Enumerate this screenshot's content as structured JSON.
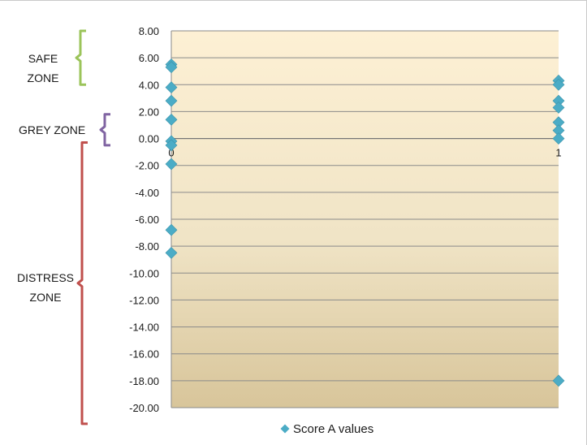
{
  "zones": [
    {
      "id": "safe",
      "lines": [
        "SAFE",
        "ZONE"
      ],
      "color": "#9bc45a",
      "range": [
        4.0,
        8.0
      ]
    },
    {
      "id": "grey",
      "lines": [
        "GREY ZONE"
      ],
      "color": "#8064a2",
      "range": [
        -0.5,
        1.8
      ]
    },
    {
      "id": "distress",
      "lines": [
        "DISTRESS",
        "ZONE"
      ],
      "color": "#c0504d",
      "range": [
        -21.2,
        -0.3
      ]
    }
  ],
  "chart_data": {
    "type": "scatter",
    "title": "",
    "xlabel": "",
    "ylabel": "",
    "xlim": [
      0,
      1
    ],
    "ylim": [
      -20,
      8
    ],
    "x_ticks": [
      0,
      1
    ],
    "y_ticks": [
      "8.00",
      "6.00",
      "4.00",
      "2.00",
      "0.00",
      "-2.00",
      "-4.00",
      "-6.00",
      "-8.00",
      "-10.00",
      "-12.00",
      "-14.00",
      "-16.00",
      "-18.00",
      "-20.00"
    ],
    "grid": true,
    "legend_position": "bottom",
    "series": [
      {
        "name": "Score A values",
        "color": "#4bacc6",
        "marker": "diamond",
        "points": [
          {
            "x": 0,
            "y": 5.5
          },
          {
            "x": 0,
            "y": 5.3
          },
          {
            "x": 0,
            "y": 3.8
          },
          {
            "x": 0,
            "y": 2.8
          },
          {
            "x": 0,
            "y": 1.4
          },
          {
            "x": 0,
            "y": -0.2
          },
          {
            "x": 0,
            "y": -0.5
          },
          {
            "x": 0,
            "y": -1.9
          },
          {
            "x": 0,
            "y": -6.8
          },
          {
            "x": 0,
            "y": -8.5
          },
          {
            "x": 1,
            "y": 4.3
          },
          {
            "x": 1,
            "y": 4.0
          },
          {
            "x": 1,
            "y": 2.8
          },
          {
            "x": 1,
            "y": 2.3
          },
          {
            "x": 1,
            "y": 1.2
          },
          {
            "x": 1,
            "y": 0.6
          },
          {
            "x": 1,
            "y": 0.0
          },
          {
            "x": 1,
            "y": -18.0
          }
        ]
      }
    ],
    "plot_gradient": {
      "top": "#fdf0d4",
      "mid": "#f0e4c6",
      "bottom": "#d8c59a"
    }
  }
}
